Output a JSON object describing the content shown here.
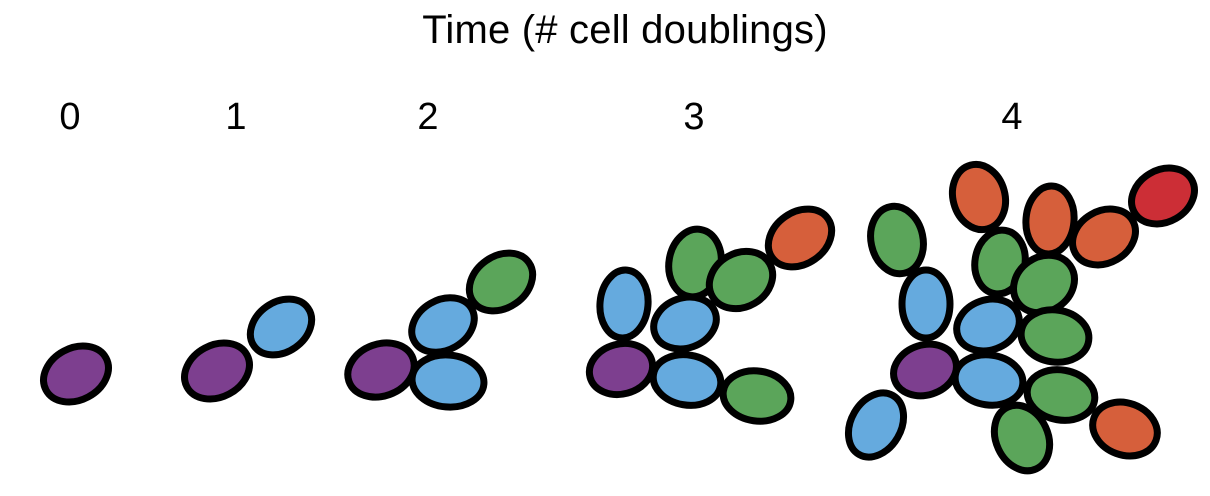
{
  "title": "Time (# cell doublings)",
  "stages": [
    {
      "label": "0"
    },
    {
      "label": "1"
    },
    {
      "label": "2"
    },
    {
      "label": "3"
    },
    {
      "label": "4"
    }
  ],
  "colors": {
    "purple": "#7d3f8f",
    "blue": "#65aade",
    "green": "#5ba55a",
    "orange": "#d65f3b",
    "red": "#cc2e36",
    "outline": "#000000"
  }
}
